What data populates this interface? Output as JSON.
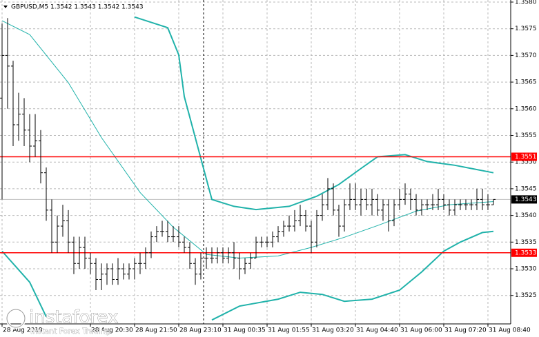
{
  "chart_data": {
    "type": "ohlc",
    "title": "GBPUSD,M5  1.3542 1.3543 1.3542 1.3543",
    "color": "#000000",
    "xlim": [
      0,
      89
    ],
    "ylim": [
      1.352,
      1.358
    ],
    "yticks": [
      {
        "value": 1.358,
        "label": "1.3580"
      },
      1.3575,
      {
        "value": 1.357,
        "label": "1.3570"
      },
      1.3565,
      {
        "value": 1.356,
        "label": "1.3560"
      },
      1.3555,
      {
        "value": 1.355,
        "label": "1.3550"
      },
      1.3545,
      {
        "value": 1.354,
        "label": "1.3540"
      },
      1.3535,
      {
        "value": 1.353,
        "label": "1.3530"
      },
      1.3525
    ],
    "xticks": [
      {
        "value": 0,
        "label": "28 Aug 2019"
      },
      {
        "value": 16,
        "label": "28 Aug 20:30"
      },
      {
        "value": 24,
        "label": "28 Aug 21:50"
      },
      {
        "value": 32,
        "label": "28 Aug 23:10"
      },
      {
        "value": 40,
        "label": "31 Aug 00:35"
      },
      {
        "value": 48,
        "label": "31 Aug 01:55"
      },
      {
        "value": 56,
        "label": "31 Aug 03:20"
      },
      {
        "value": 64,
        "label": "31 Aug 04:40"
      },
      {
        "value": 72,
        "label": "31 Aug 06:00"
      },
      {
        "value": 80,
        "label": "31 Aug 07:20"
      },
      {
        "value": 88,
        "label": "31 Aug 08:40"
      }
    ],
    "grid": true,
    "open": [
      1.3562,
      1.357,
      1.3568,
      1.3557,
      1.3559,
      1.3556,
      1.3553,
      1.3554,
      1.3548,
      1.3541,
      1.3535,
      1.3538,
      1.3539,
      1.3535,
      1.3531,
      1.3534,
      1.3532,
      1.3531,
      1.3528,
      1.3529,
      1.353,
      1.3528,
      1.353,
      1.3529,
      1.353,
      1.3531,
      1.3531,
      1.3533,
      1.3536,
      1.3537,
      1.3537,
      1.3536,
      1.3536,
      1.3535,
      1.3534,
      1.3531,
      1.3529,
      1.3532,
      1.3532,
      1.3532,
      1.3533,
      1.3532,
      1.3533,
      1.3532,
      1.353,
      1.3531,
      1.3532,
      1.3535,
      1.3535,
      1.3535,
      1.3536,
      1.3537,
      1.3538,
      1.3538,
      1.3539,
      1.354,
      1.3538,
      1.3535,
      1.354,
      1.3542,
      1.3545,
      1.3541,
      1.3538,
      1.3542,
      1.3543,
      1.3542,
      1.3543,
      1.3542,
      1.3543,
      1.3541,
      1.3542,
      1.3539,
      1.3542,
      1.3543,
      1.3544,
      1.3543,
      1.3541,
      1.3542,
      1.3542,
      1.3542,
      1.3543,
      1.3542,
      1.3541,
      1.3542,
      1.3542,
      1.3542,
      1.3542,
      1.3543,
      1.3542,
      1.3542
    ],
    "high": [
      1.3576,
      1.3577,
      1.3569,
      1.3563,
      1.3562,
      1.3559,
      1.3559,
      1.3556,
      1.3549,
      1.3543,
      1.354,
      1.3542,
      1.3541,
      1.3536,
      1.3536,
      1.3536,
      1.3533,
      1.3532,
      1.3531,
      1.3531,
      1.3531,
      1.3532,
      1.3531,
      1.3531,
      1.3532,
      1.3533,
      1.3534,
      1.3537,
      1.3538,
      1.3539,
      1.3539,
      1.3538,
      1.3538,
      1.3536,
      1.3535,
      1.3532,
      1.3533,
      1.3534,
      1.3534,
      1.3534,
      1.3534,
      1.3534,
      1.3535,
      1.3533,
      1.3532,
      1.3533,
      1.3536,
      1.3536,
      1.3536,
      1.3537,
      1.3538,
      1.3539,
      1.354,
      1.3541,
      1.3542,
      1.3541,
      1.3539,
      1.3541,
      1.3544,
      1.3547,
      1.3546,
      1.3542,
      1.3543,
      1.3546,
      1.3546,
      1.3545,
      1.3545,
      1.3545,
      1.3544,
      1.3543,
      1.3543,
      1.3543,
      1.3545,
      1.3546,
      1.3545,
      1.3544,
      1.3543,
      1.3543,
      1.3544,
      1.3545,
      1.3544,
      1.3543,
      1.3543,
      1.3543,
      1.3543,
      1.3543,
      1.3545,
      1.3545,
      1.3544,
      1.3543
    ],
    "low": [
      1.3543,
      1.356,
      1.3553,
      1.3554,
      1.3553,
      1.355,
      1.3551,
      1.3546,
      1.3539,
      1.3533,
      1.3533,
      1.3536,
      1.3533,
      1.3529,
      1.353,
      1.353,
      1.3529,
      1.3526,
      1.3526,
      1.3527,
      1.3527,
      1.3527,
      1.3528,
      1.3528,
      1.3528,
      1.3529,
      1.353,
      1.3532,
      1.3535,
      1.3536,
      1.3535,
      1.3535,
      1.3534,
      1.3533,
      1.353,
      1.3527,
      1.3528,
      1.353,
      1.3531,
      1.3531,
      1.3531,
      1.3531,
      1.353,
      1.3528,
      1.3529,
      1.353,
      1.3532,
      1.3534,
      1.3534,
      1.3534,
      1.3535,
      1.3536,
      1.3537,
      1.3537,
      1.3538,
      1.3537,
      1.3533,
      1.3534,
      1.3539,
      1.3541,
      1.354,
      1.3536,
      1.3537,
      1.3541,
      1.3541,
      1.354,
      1.3541,
      1.354,
      1.354,
      1.3539,
      1.3537,
      1.3538,
      1.3541,
      1.3542,
      1.3541,
      1.354,
      1.354,
      1.3541,
      1.3541,
      1.3541,
      1.3541,
      1.354,
      1.354,
      1.3541,
      1.3541,
      1.3541,
      1.3541,
      1.3541,
      1.3541,
      1.3542
    ],
    "close": [
      1.357,
      1.3568,
      1.3557,
      1.3559,
      1.3556,
      1.3553,
      1.3554,
      1.3548,
      1.3541,
      1.3535,
      1.3538,
      1.3539,
      1.3535,
      1.3531,
      1.3534,
      1.3532,
      1.3531,
      1.3528,
      1.3529,
      1.353,
      1.3528,
      1.353,
      1.3529,
      1.353,
      1.3531,
      1.3531,
      1.3533,
      1.3536,
      1.3537,
      1.3537,
      1.3536,
      1.3536,
      1.3535,
      1.3534,
      1.3531,
      1.3529,
      1.3532,
      1.3532,
      1.3532,
      1.3533,
      1.3532,
      1.3533,
      1.3532,
      1.353,
      1.3531,
      1.3532,
      1.3535,
      1.3535,
      1.3535,
      1.3536,
      1.3537,
      1.3538,
      1.3538,
      1.3539,
      1.354,
      1.3538,
      1.3535,
      1.354,
      1.3542,
      1.3545,
      1.3541,
      1.3538,
      1.3542,
      1.3543,
      1.3542,
      1.3543,
      1.3542,
      1.3543,
      1.3541,
      1.3542,
      1.3539,
      1.3542,
      1.3543,
      1.3544,
      1.3543,
      1.3541,
      1.3542,
      1.3542,
      1.3542,
      1.3543,
      1.3542,
      1.3541,
      1.3542,
      1.3542,
      1.3542,
      1.3542,
      1.3543,
      1.3542,
      1.3542,
      1.3543
    ],
    "series": [
      {
        "color": "#20b2aa",
        "line_style": "thin",
        "x": [
          0,
          5,
          12,
          18,
          25,
          31,
          37,
          43,
          50,
          56,
          62,
          68,
          75,
          81,
          89
        ],
        "values": [
          1.35765,
          1.35739,
          1.35649,
          1.35546,
          1.35443,
          1.35378,
          1.35327,
          1.3532,
          1.35324,
          1.3534,
          1.35359,
          1.35381,
          1.35408,
          1.3542,
          1.35426
        ]
      },
      {
        "color": "#20b2aa",
        "line_style": "thick",
        "x": [
          24,
          30,
          32,
          33,
          36,
          38,
          42,
          46,
          52,
          57,
          61,
          65,
          68,
          73,
          77,
          82,
          85,
          89
        ],
        "values": [
          1.35772,
          1.35752,
          1.35701,
          1.35623,
          1.35507,
          1.3543,
          1.35417,
          1.35411,
          1.35417,
          1.35436,
          1.35458,
          1.35488,
          1.3551,
          1.35514,
          1.35501,
          1.35494,
          1.35488,
          1.3548
        ]
      },
      {
        "color": "#20b2aa",
        "line_style": "thick",
        "x": [
          0,
          5,
          8,
          9,
          38,
          43,
          50,
          54,
          58,
          62,
          67,
          72,
          76,
          80,
          83,
          87,
          89
        ],
        "values": [
          1.35333,
          1.35275,
          1.3521,
          null,
          1.35204,
          1.3523,
          1.35243,
          1.35256,
          1.35252,
          1.35239,
          1.35243,
          1.3526,
          1.35294,
          1.35333,
          1.3535,
          1.35368,
          1.3537
        ]
      }
    ],
    "hlines": [
      {
        "value": 1.3551,
        "color": "#ff0000"
      },
      {
        "value": 1.3533,
        "color": "#ff0000"
      }
    ],
    "last_price": 1.3543,
    "watermark": {
      "brand": "instaforex",
      "tagline": "Instant Forex Trading"
    }
  }
}
